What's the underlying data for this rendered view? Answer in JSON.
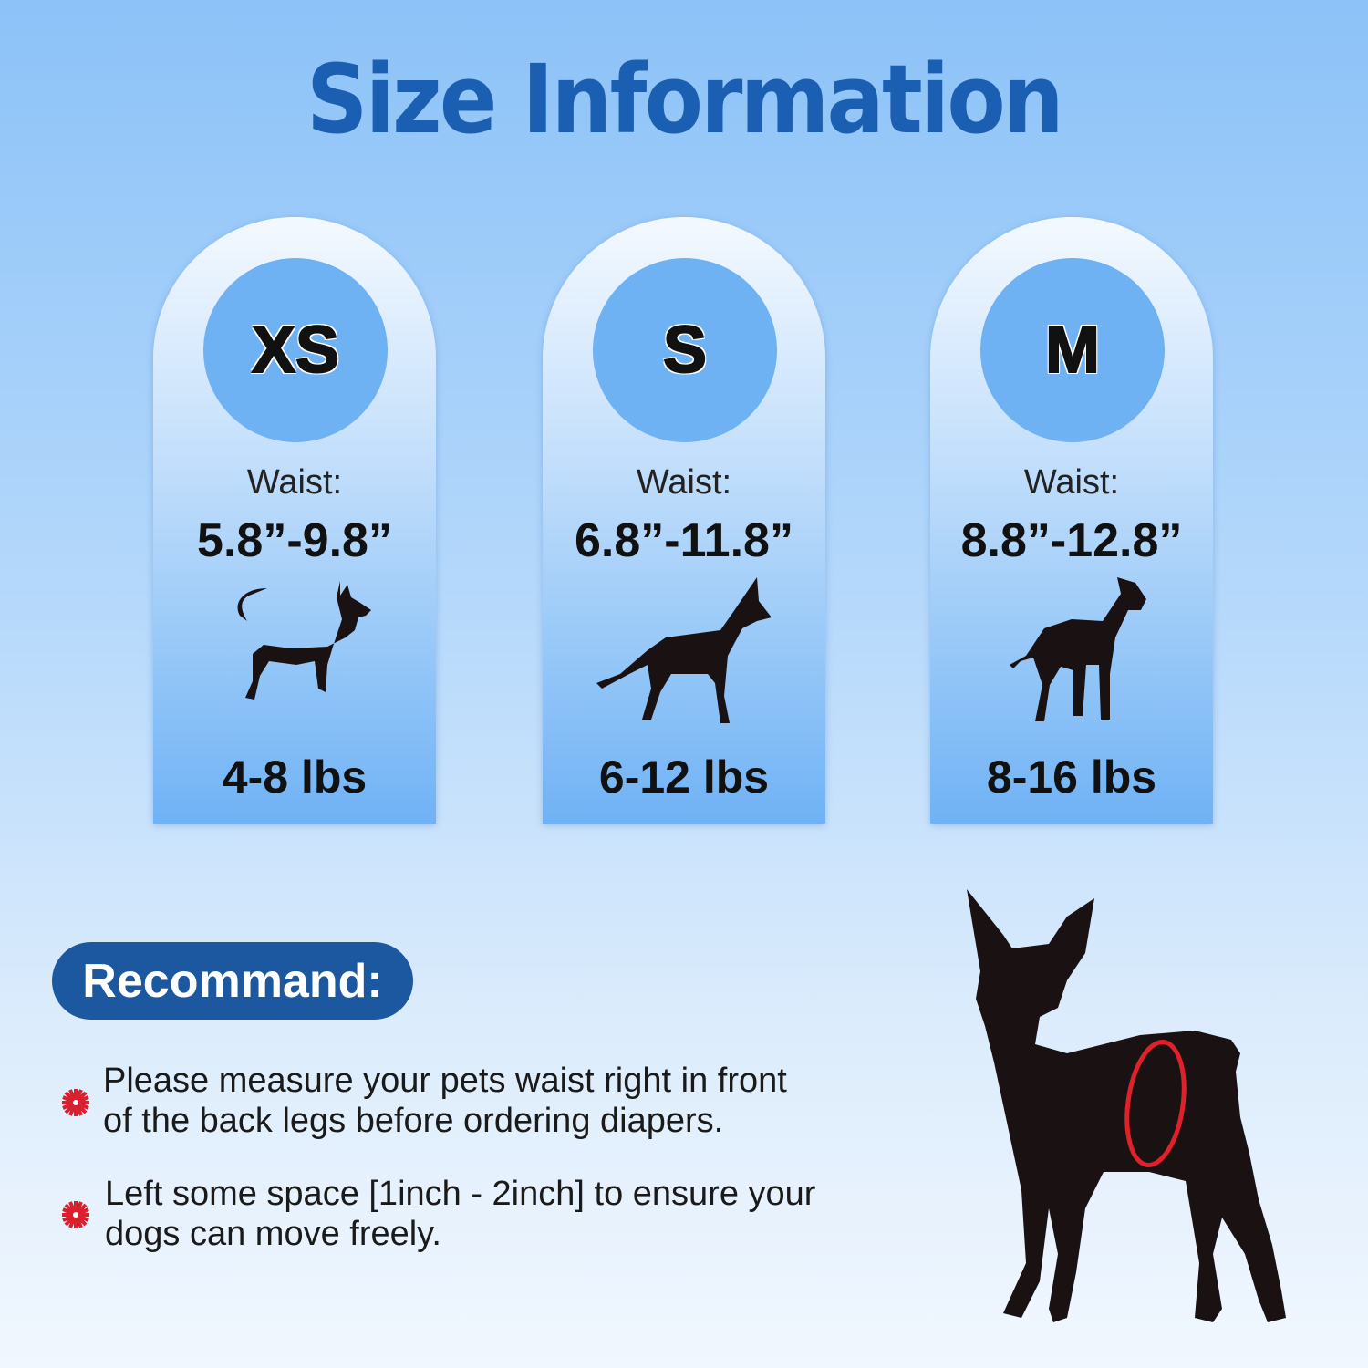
{
  "title": "Size Information",
  "sizes": [
    {
      "size": "XS",
      "waist_label": "Waist:",
      "waist": "5.8”-9.8”",
      "weight": "4-8 lbs",
      "dog_icon": "chihuahua-silhouette-icon"
    },
    {
      "size": "S",
      "waist_label": "Waist:",
      "waist": "6.8”-11.8”",
      "weight": "6-12 lbs",
      "dog_icon": "shepherd-silhouette-icon"
    },
    {
      "size": "M",
      "waist_label": "Waist:",
      "waist": "8.8”-12.8”",
      "weight": "8-16 lbs",
      "dog_icon": "great-dane-silhouette-icon"
    }
  ],
  "recommend": {
    "label": "Recommand:",
    "tips": [
      {
        "line1": "Please measure your pets waist right in front",
        "line2": "of the back legs before ordering diapers."
      },
      {
        "line1": "Left some space [1inch - 2inch] to ensure your",
        "line2": "dogs can move freely."
      }
    ]
  },
  "colors": {
    "title": "#1b5fb2",
    "pill": "#1b58a0",
    "bullet": "#d8202e",
    "waist_ring": "#e0202a"
  }
}
